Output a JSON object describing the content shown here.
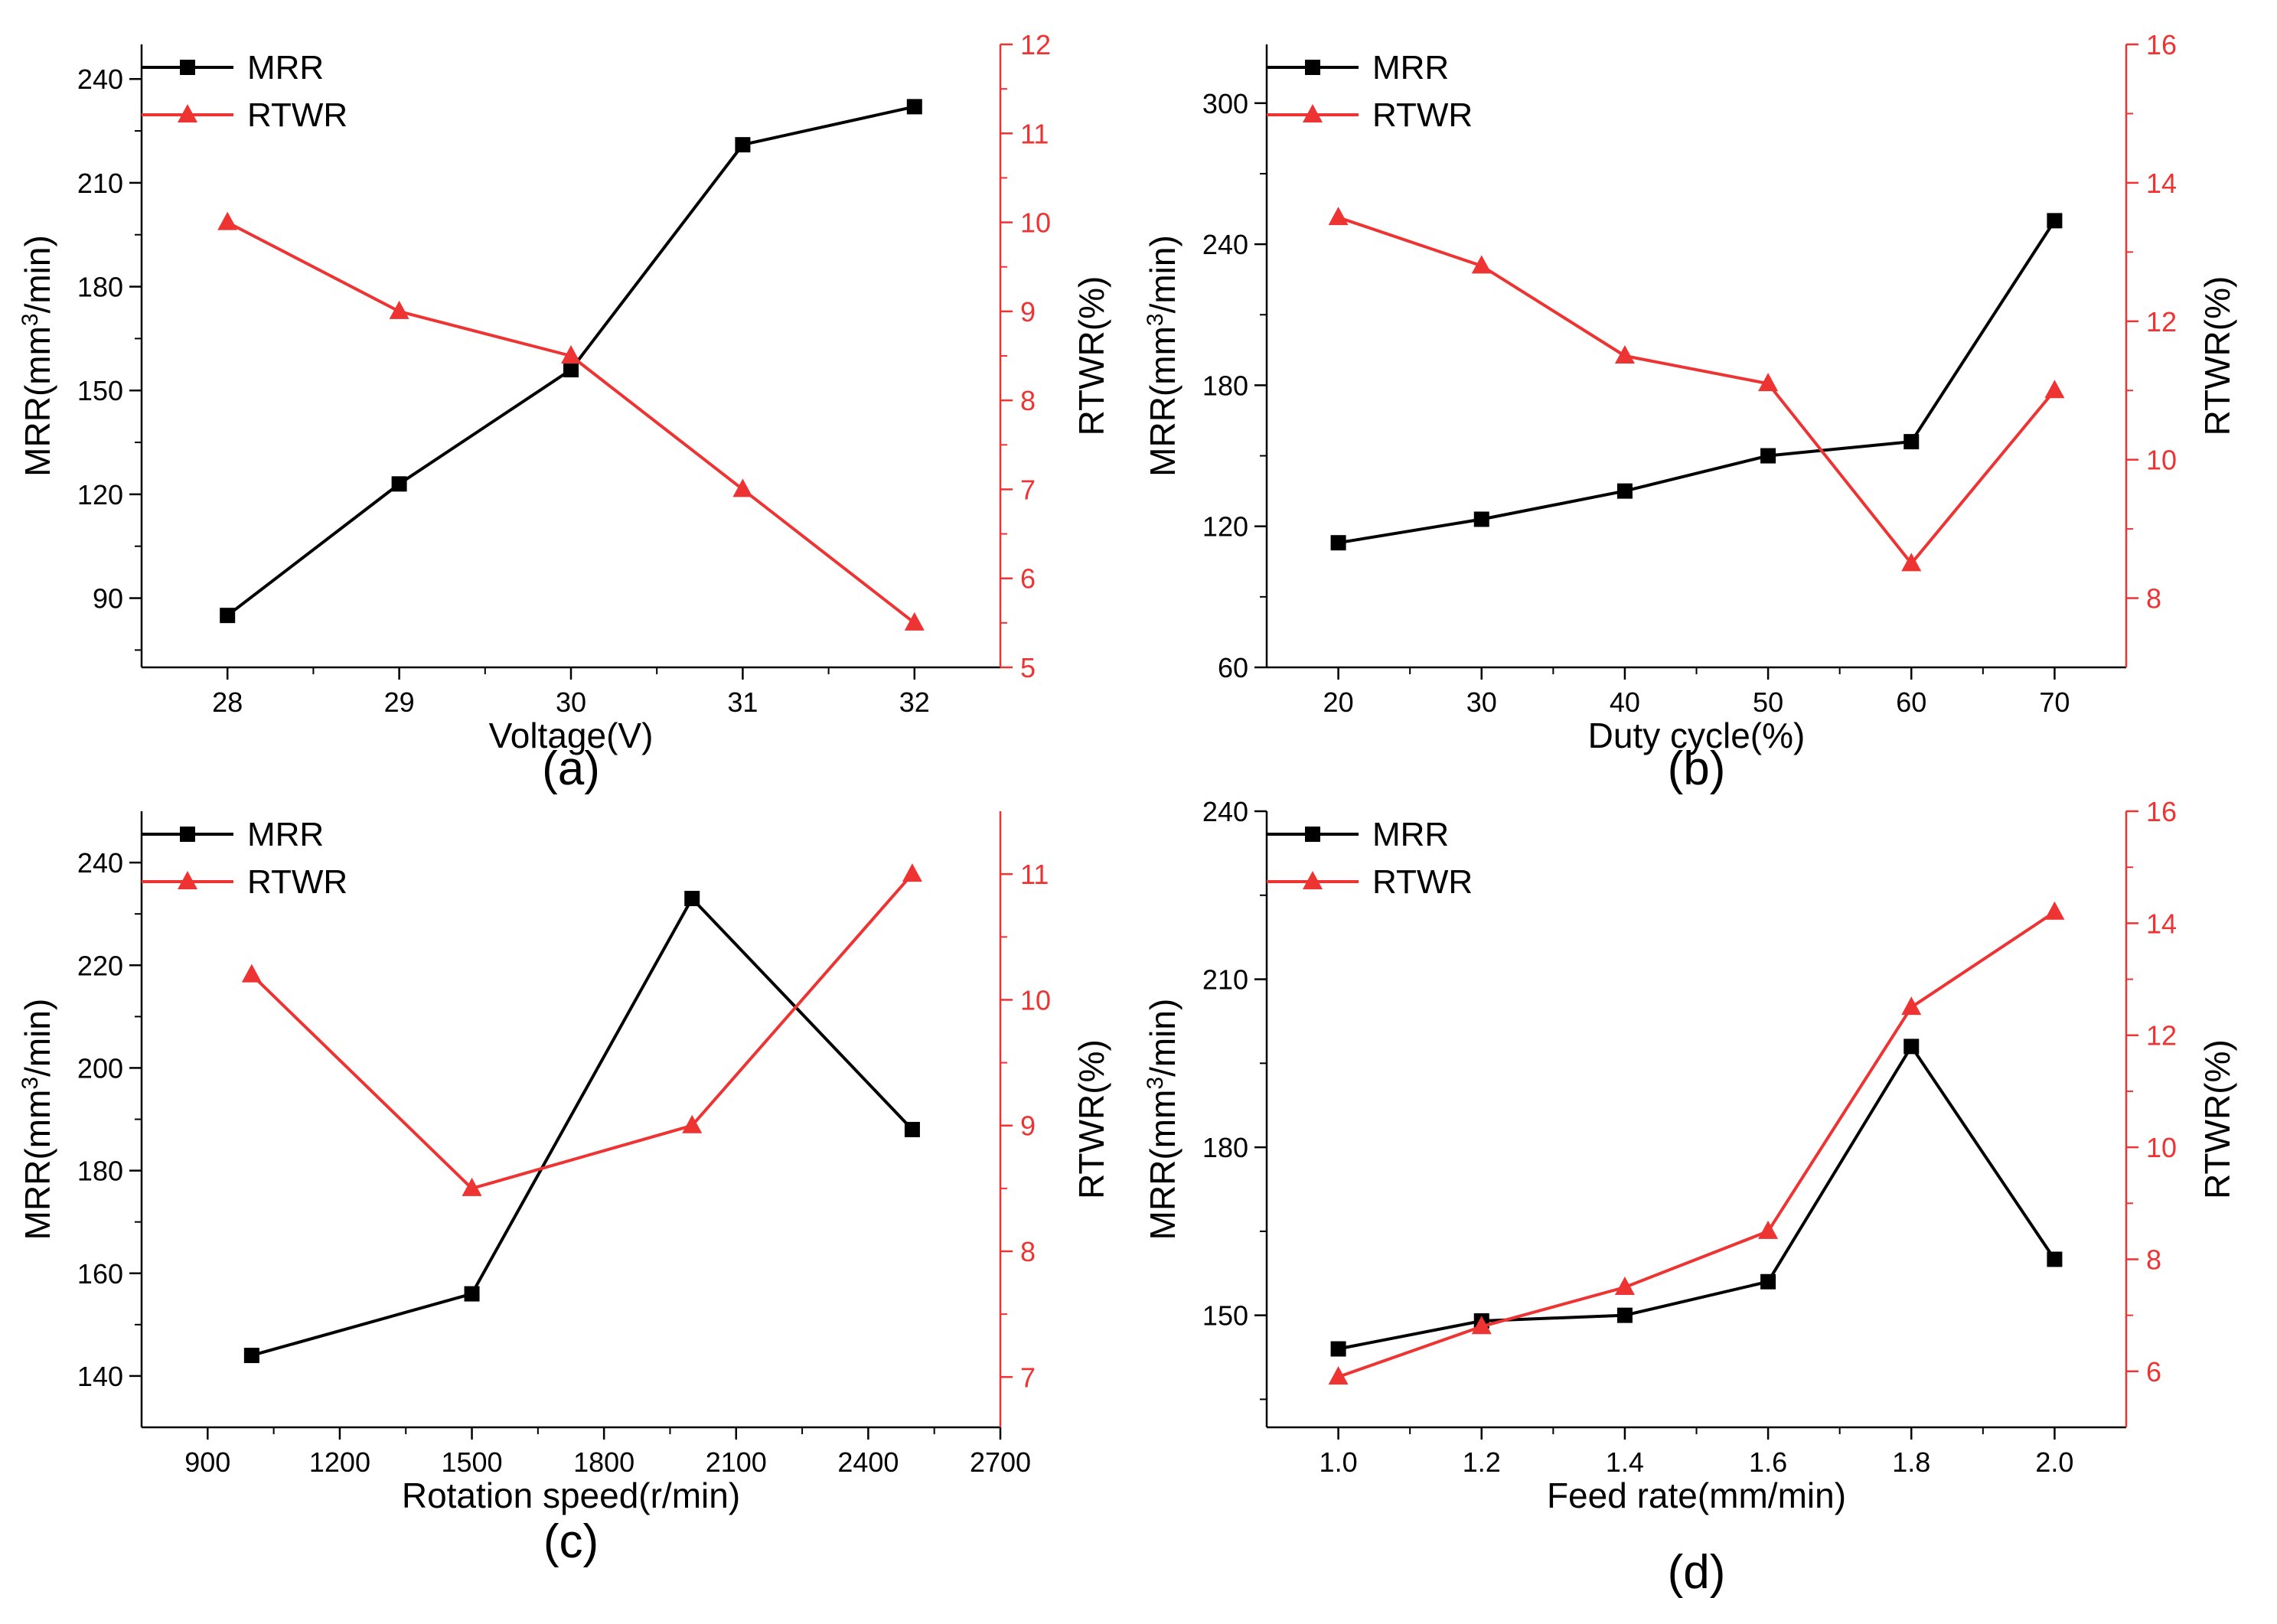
{
  "chart_data": [
    {
      "type": "line",
      "panel_label": "(a)",
      "xlabel": "Voltage(V)",
      "ylabel_left": {
        "text": "MRR(mm",
        "sup": "3",
        "tail": "/min)"
      },
      "ylabel_right": "RTWR(%)",
      "x": [
        28,
        29,
        30,
        31,
        32
      ],
      "xlim": [
        27.5,
        32.5
      ],
      "xticks": [
        28,
        29,
        30,
        31,
        32
      ],
      "xtick_labels": [
        "28",
        "29",
        "30",
        "31",
        "32"
      ],
      "ylim_left": [
        70,
        250
      ],
      "yticks_left": [
        90,
        120,
        150,
        180,
        210,
        240
      ],
      "ylim_right": [
        5,
        12
      ],
      "yticks_right": [
        5,
        6,
        7,
        8,
        9,
        10,
        11,
        12
      ],
      "series": [
        {
          "name": "MRR",
          "axis": "left",
          "color": "#000000",
          "marker": "square",
          "values": [
            85,
            123,
            156,
            221,
            232
          ]
        },
        {
          "name": "RTWR",
          "axis": "right",
          "color": "#ee3333",
          "marker": "triangle",
          "values": [
            10,
            9,
            8.5,
            7,
            5.5
          ]
        }
      ]
    },
    {
      "type": "line",
      "panel_label": "(b)",
      "xlabel": "Duty cycle(%)",
      "ylabel_left": {
        "text": "MRR(mm",
        "sup": "3",
        "tail": "/min)"
      },
      "ylabel_right": "RTWR(%)",
      "x": [
        20,
        30,
        40,
        50,
        60,
        70
      ],
      "xlim": [
        15,
        75
      ],
      "xticks": [
        20,
        30,
        40,
        50,
        60,
        70
      ],
      "xtick_labels": [
        "20",
        "30",
        "40",
        "50",
        "60",
        "70"
      ],
      "ylim_left": [
        60,
        325
      ],
      "yticks_left": [
        60,
        120,
        180,
        240,
        300
      ],
      "ylim_right": [
        7,
        16
      ],
      "yticks_right": [
        8,
        10,
        12,
        14,
        16
      ],
      "series": [
        {
          "name": "MRR",
          "axis": "left",
          "color": "#000000",
          "marker": "square",
          "values": [
            113,
            123,
            135,
            150,
            156,
            250
          ]
        },
        {
          "name": "RTWR",
          "axis": "right",
          "color": "#ee3333",
          "marker": "triangle",
          "values": [
            13.5,
            12.8,
            11.5,
            11.1,
            8.5,
            11
          ]
        }
      ]
    },
    {
      "type": "line",
      "panel_label": "(c)",
      "xlabel": "Rotation speed(r/min)",
      "ylabel_left": {
        "text": "MRR(mm",
        "sup": "3",
        "tail": "/min)"
      },
      "ylabel_right": "RTWR(%)",
      "x": [
        1000,
        1500,
        2000,
        2500
      ],
      "xlim": [
        750,
        2700
      ],
      "xticks": [
        900,
        1200,
        1500,
        1800,
        2100,
        2400,
        2700
      ],
      "xtick_labels": [
        "900",
        "1200",
        "1500",
        "1800",
        "2100",
        "2400",
        "2700"
      ],
      "ylim_left": [
        130,
        250
      ],
      "yticks_left": [
        140,
        160,
        180,
        200,
        220,
        240
      ],
      "ylim_right": [
        6.6,
        11.5
      ],
      "yticks_right": [
        7,
        8,
        9,
        10,
        11
      ],
      "series": [
        {
          "name": "MRR",
          "axis": "left",
          "color": "#000000",
          "marker": "square",
          "values": [
            144,
            156,
            233,
            188
          ]
        },
        {
          "name": "RTWR",
          "axis": "right",
          "color": "#ee3333",
          "marker": "triangle",
          "values": [
            10.2,
            8.5,
            9,
            11
          ]
        }
      ]
    },
    {
      "type": "line",
      "panel_label": "(d)",
      "xlabel": "Feed rate(mm/min)",
      "ylabel_left": {
        "text": "MRR(mm",
        "sup": "3",
        "tail": "/min)"
      },
      "ylabel_right": "RTWR(%)",
      "x": [
        1.0,
        1.2,
        1.4,
        1.6,
        1.8,
        2.0
      ],
      "xlim": [
        0.9,
        2.1
      ],
      "xticks": [
        1.0,
        1.2,
        1.4,
        1.6,
        1.8,
        2.0
      ],
      "xtick_labels": [
        "1.0",
        "1.2",
        "1.4",
        "1.6",
        "1.8",
        "2.0"
      ],
      "ylim_left": [
        130,
        240
      ],
      "yticks_left": [
        150,
        180,
        210,
        240
      ],
      "ylim_right": [
        5,
        16
      ],
      "yticks_right": [
        6,
        8,
        10,
        12,
        14,
        16
      ],
      "series": [
        {
          "name": "MRR",
          "axis": "left",
          "color": "#000000",
          "marker": "square",
          "values": [
            144,
            149,
            150,
            156,
            198,
            160
          ]
        },
        {
          "name": "RTWR",
          "axis": "right",
          "color": "#ee3333",
          "marker": "triangle",
          "values": [
            5.9,
            6.8,
            7.5,
            8.5,
            12.5,
            14.2
          ]
        }
      ]
    }
  ]
}
